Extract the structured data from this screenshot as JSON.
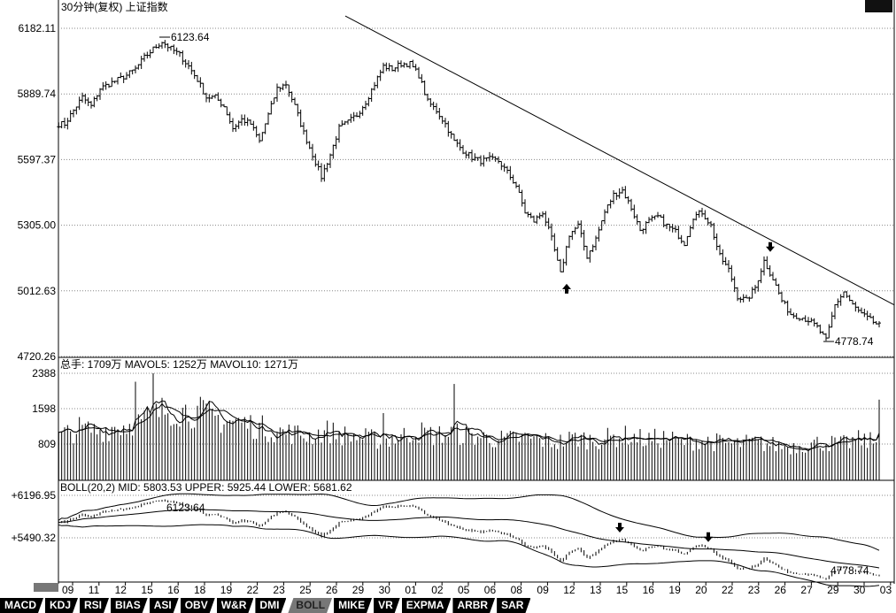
{
  "header": {
    "title": "30分钟(复权)  上证指数"
  },
  "volume_header": "总手: 1709万  MAVOL5: 1252万  MAVOL10: 1271万",
  "boll_header": "BOLL(20,2) MID: 5803.53 UPPER: 5925.44 LOWER: 5681.62",
  "tabs": [
    "MACD",
    "KDJ",
    "RSI",
    "BIAS",
    "ASI",
    "OBV",
    "W&R",
    "DMI",
    "BOLL",
    "MIKE",
    "VR",
    "EXPMA",
    "ARBR",
    "SAR"
  ],
  "active_tab": "BOLL",
  "chart_data": [
    {
      "type": "ohlc",
      "title": "30分钟(复权) 上证指数",
      "y_ticks": [
        "6182.11",
        "5889.74",
        "5597.37",
        "5305.00",
        "5012.63",
        "4720.26"
      ],
      "ylim": [
        4720.26,
        6182.11
      ],
      "x_tick_labels": [
        "09",
        "11",
        "12",
        "15",
        "16",
        "18",
        "19",
        "22",
        "23",
        "25",
        "26",
        "29",
        "30",
        "01",
        "02",
        "05",
        "06",
        "08",
        "09",
        "12",
        "13",
        "15",
        "16",
        "19",
        "20",
        "22",
        "23",
        "26",
        "27",
        "29",
        "30",
        "03"
      ],
      "closes": [
        5756,
        5816,
        5875,
        5835,
        5914,
        5934,
        5953,
        5973,
        6001,
        6052,
        6090,
        6123,
        6091,
        6064,
        6013,
        5953,
        5875,
        5875,
        5835,
        5737,
        5776,
        5756,
        5678,
        5796,
        5914,
        5934,
        5835,
        5717,
        5619,
        5520,
        5619,
        5737,
        5764,
        5796,
        5855,
        5934,
        6013,
        6001,
        6024,
        6024,
        5973,
        5855,
        5816,
        5756,
        5678,
        5638,
        5607,
        5591,
        5599,
        5591,
        5540,
        5481,
        5363,
        5323,
        5363,
        5244,
        5087,
        5264,
        5303,
        5166,
        5244,
        5363,
        5441,
        5461,
        5382,
        5284,
        5323,
        5343,
        5303,
        5276,
        5225,
        5343,
        5363,
        5303,
        5166,
        5106,
        4988,
        4969,
        5028,
        5146,
        5067,
        4969,
        4909,
        4898,
        4882,
        4850,
        4791,
        4949,
        5008,
        4949,
        4909,
        4882,
        4858
      ],
      "annotations": [
        {
          "text": "6123.64",
          "type": "high",
          "index": 11
        },
        {
          "text": "4778.74",
          "type": "low",
          "index": 86
        }
      ],
      "arrows": [
        {
          "dir": "up",
          "index": 57,
          "price": 5020
        },
        {
          "dir": "down",
          "index": 80,
          "price": 5210
        }
      ],
      "trendline": {
        "from": {
          "index": 32,
          "price": 6237
        },
        "to": {
          "index": 94,
          "price": 4950
        }
      }
    },
    {
      "type": "bar",
      "title": "总手 / MAVOL5 / MAVOL10",
      "y_ticks": [
        "2388",
        "1598",
        "809"
      ],
      "ylim": [
        0,
        2388
      ],
      "values": [
        1000,
        1150,
        1100,
        1200,
        1250,
        1400,
        1600,
        1550,
        1500,
        1350,
        1300,
        1200,
        1100,
        1050,
        1000,
        1100,
        1000,
        950,
        900,
        950,
        1100,
        1000,
        1050,
        1000,
        950,
        900,
        950,
        900,
        850,
        950,
        900,
        950,
        1000,
        900,
        950,
        850,
        900,
        850,
        800,
        850,
        800,
        750,
        800,
        850,
        800,
        900,
        850
      ],
      "spikes": [
        {
          "index": 5,
          "value": 2388
        },
        {
          "index": 4,
          "value": 2200
        },
        {
          "index": 18,
          "value": 1500
        },
        {
          "index": 22,
          "value": 2150
        },
        {
          "index": 46,
          "value": 1800
        }
      ]
    },
    {
      "type": "line",
      "title": "BOLL(20,2)",
      "y_ticks": [
        "+6196.95",
        "+5490.32"
      ],
      "ylim": [
        4790,
        6196.95
      ],
      "series": [
        "MID",
        "UPPER",
        "LOWER"
      ],
      "annotations": [
        {
          "text": "6123.64",
          "index": 11
        },
        {
          "text": "4778.74",
          "index": 86
        }
      ],
      "arrows": [
        {
          "dir": "down",
          "index": 63
        },
        {
          "dir": "down",
          "index": 73
        }
      ]
    }
  ]
}
